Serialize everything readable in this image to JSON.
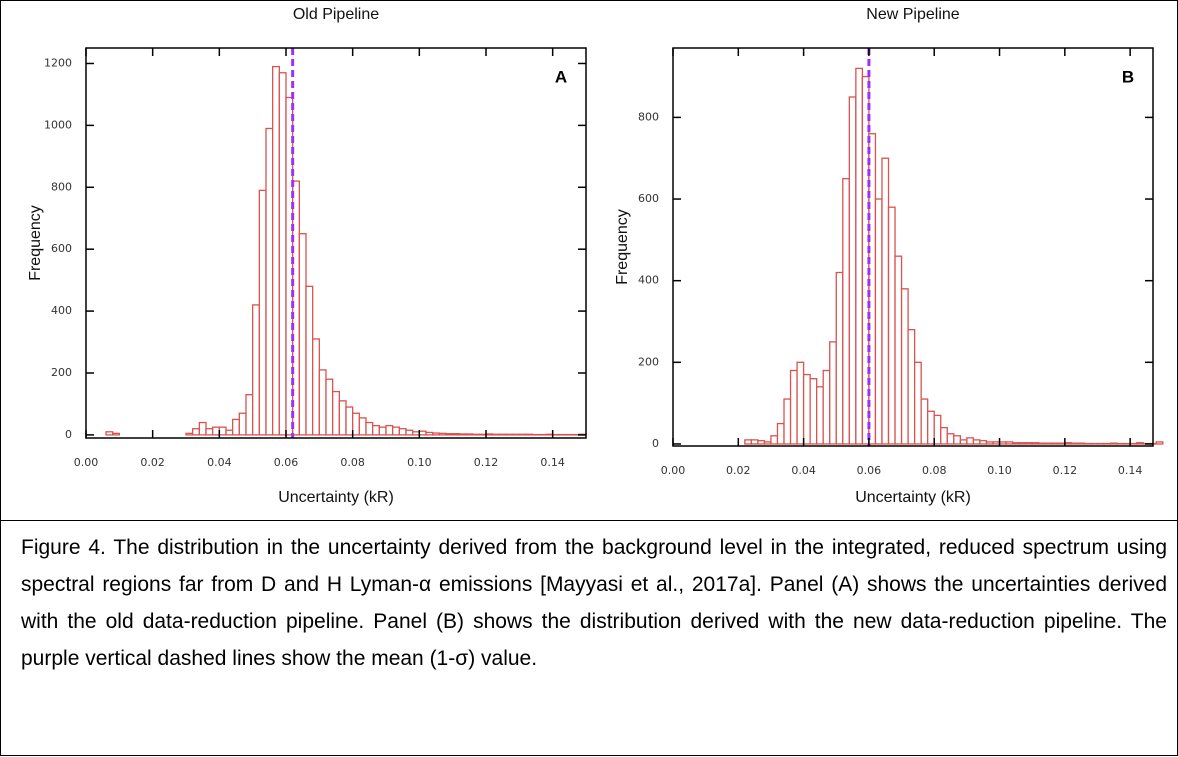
{
  "chart_data": [
    {
      "type": "histogram",
      "title": "Old Pipeline",
      "x_label": "Uncertainty (kR)",
      "y_label": "Frequency",
      "annotation": "A",
      "bins": [
        0,
        0.002,
        0.004,
        0.006,
        0.008,
        0.01,
        0.012,
        0.014,
        0.016,
        0.018,
        0.02,
        0.022,
        0.024,
        0.026,
        0.028,
        0.03,
        0.032,
        0.034,
        0.036,
        0.038,
        0.04,
        0.042,
        0.044,
        0.046,
        0.048,
        0.05,
        0.052,
        0.054,
        0.056,
        0.058,
        0.06,
        0.062,
        0.064,
        0.066,
        0.068,
        0.07,
        0.072,
        0.074,
        0.076,
        0.078,
        0.08,
        0.082,
        0.084,
        0.086,
        0.088,
        0.09,
        0.092,
        0.094,
        0.096,
        0.098,
        0.1,
        0.102,
        0.104,
        0.106,
        0.108,
        0.11,
        0.112,
        0.114,
        0.116,
        0.118,
        0.12,
        0.122,
        0.124,
        0.126,
        0.128,
        0.13,
        0.132,
        0.134,
        0.136,
        0.138,
        0.14,
        0.142,
        0.144,
        0.146,
        0.148,
        0.15
      ],
      "values": [
        0,
        0,
        0,
        10,
        5,
        0,
        0,
        0,
        0,
        0,
        0,
        0,
        0,
        0,
        0,
        5,
        20,
        40,
        20,
        25,
        25,
        15,
        50,
        70,
        130,
        420,
        790,
        990,
        1190,
        1170,
        1090,
        820,
        650,
        480,
        310,
        210,
        180,
        140,
        110,
        90,
        70,
        55,
        40,
        30,
        25,
        30,
        25,
        20,
        15,
        10,
        12,
        8,
        6,
        5,
        4,
        4,
        3,
        3,
        2,
        2,
        3,
        2,
        2,
        2,
        2,
        2,
        2,
        1,
        1,
        2,
        1,
        1,
        1,
        1,
        2
      ],
      "color": "#d9534f",
      "mean_line": {
        "value": 0.062,
        "color": "#9b30ff"
      },
      "xlim": [
        0,
        0.15
      ],
      "ylim": [
        -10,
        1250
      ],
      "xticks": [
        {
          "value": 0,
          "label": "0.00"
        },
        0.02,
        0.04,
        0.06,
        0.08,
        {
          "value": 0.1,
          "label": "0.10"
        },
        0.12,
        0.14
      ],
      "yticks": [
        0,
        200,
        400,
        600,
        800,
        1000,
        1200
      ]
    },
    {
      "type": "histogram",
      "title": "New Pipeline",
      "x_label": "Uncertainty (kR)",
      "y_label": "Frequency",
      "annotation": "B",
      "bins": [
        0,
        0.002,
        0.004,
        0.006,
        0.008,
        0.01,
        0.012,
        0.014,
        0.016,
        0.018,
        0.02,
        0.022,
        0.024,
        0.026,
        0.028,
        0.03,
        0.032,
        0.034,
        0.036,
        0.038,
        0.04,
        0.042,
        0.044,
        0.046,
        0.048,
        0.05,
        0.052,
        0.054,
        0.056,
        0.058,
        0.06,
        0.062,
        0.064,
        0.066,
        0.068,
        0.07,
        0.072,
        0.074,
        0.076,
        0.078,
        0.08,
        0.082,
        0.084,
        0.086,
        0.088,
        0.09,
        0.092,
        0.094,
        0.096,
        0.098,
        0.1,
        0.102,
        0.104,
        0.106,
        0.108,
        0.11,
        0.112,
        0.114,
        0.116,
        0.118,
        0.12,
        0.122,
        0.124,
        0.126,
        0.128,
        0.13,
        0.132,
        0.134,
        0.136,
        0.138,
        0.14,
        0.142,
        0.144,
        0.146,
        0.148,
        0.15
      ],
      "values": [
        0,
        0,
        0,
        0,
        0,
        0,
        0,
        0,
        0,
        0,
        0,
        10,
        10,
        8,
        5,
        20,
        50,
        110,
        180,
        200,
        170,
        160,
        140,
        180,
        250,
        420,
        650,
        850,
        920,
        900,
        760,
        600,
        700,
        580,
        460,
        380,
        280,
        200,
        110,
        80,
        70,
        40,
        25,
        20,
        10,
        15,
        10,
        8,
        5,
        5,
        5,
        5,
        3,
        3,
        3,
        3,
        2,
        2,
        2,
        2,
        3,
        2,
        2,
        1,
        1,
        1,
        1,
        2,
        1,
        1,
        1,
        3,
        1,
        1,
        5
      ],
      "color": "#d9534f",
      "mean_line": {
        "value": 0.06,
        "color": "#9b30ff"
      },
      "xlim": [
        0,
        0.147
      ],
      "ylim": [
        -5,
        970
      ],
      "xticks": [
        {
          "value": 0,
          "label": "0.00"
        },
        0.02,
        0.04,
        0.06,
        0.08,
        {
          "value": 0.1,
          "label": "0.10"
        },
        0.12,
        0.14
      ],
      "yticks": [
        0,
        200,
        400,
        600,
        800
      ]
    }
  ],
  "caption": "Figure 4. The distribution in the uncertainty derived from the background level in the integrated, reduced spectrum using spectral regions far from D and H Lyman-α emissions [Mayyasi et al., 2017a]. Panel (A) shows the uncertainties derived with the old data-reduction pipeline. Panel (B) shows the distribution derived with the new data-reduction pipeline. The purple vertical dashed lines show the mean (1-σ) value."
}
